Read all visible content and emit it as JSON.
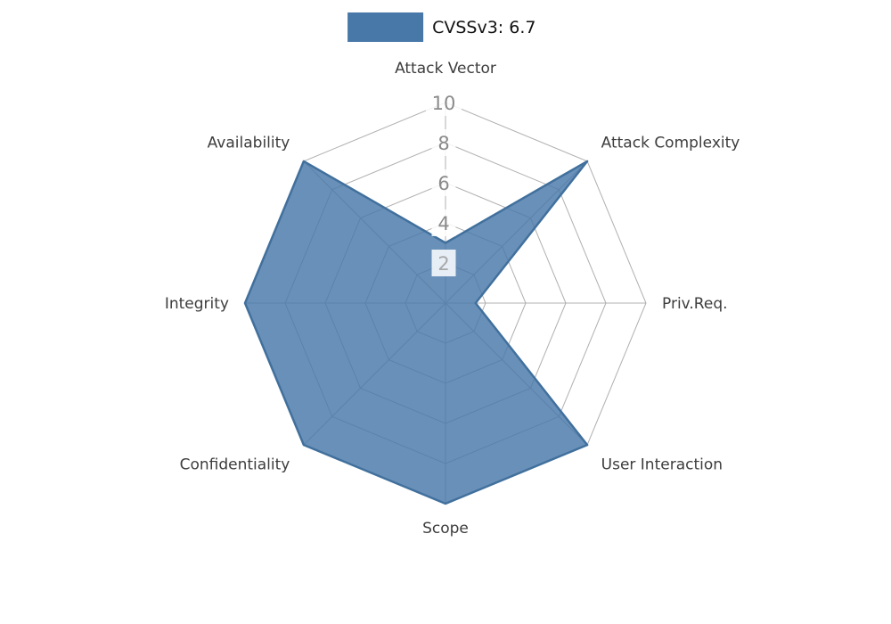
{
  "legend": {
    "label": "CVSSv3: 6.7",
    "swatch_color": "#4878a8"
  },
  "chart_data": {
    "type": "radar",
    "title": "CVSSv3: 6.7",
    "axes": [
      "Attack Vector",
      "Attack Complexity",
      "Priv.Req.",
      "User Interaction",
      "Scope",
      "Confidentiality",
      "Integrity",
      "Availability"
    ],
    "series": [
      {
        "name": "CVSSv3: 6.7",
        "values": [
          3,
          10,
          1.5,
          10,
          10,
          10,
          10,
          10
        ]
      }
    ],
    "scale": {
      "min": 0,
      "max": 10,
      "ticks": [
        2,
        4,
        6,
        8,
        10
      ]
    },
    "layout": {
      "legend_position": "top-center",
      "grid": true,
      "tick_axis": "top"
    },
    "style": {
      "fill_color": "#4878a8",
      "fill_opacity": 0.82,
      "stroke_color": "#41709d",
      "grid_color": "#b0b0b0",
      "tick_label_color": "#8a8a8a",
      "axis_label_color": "#3d3d3d",
      "background_color": "#ffffff"
    }
  }
}
